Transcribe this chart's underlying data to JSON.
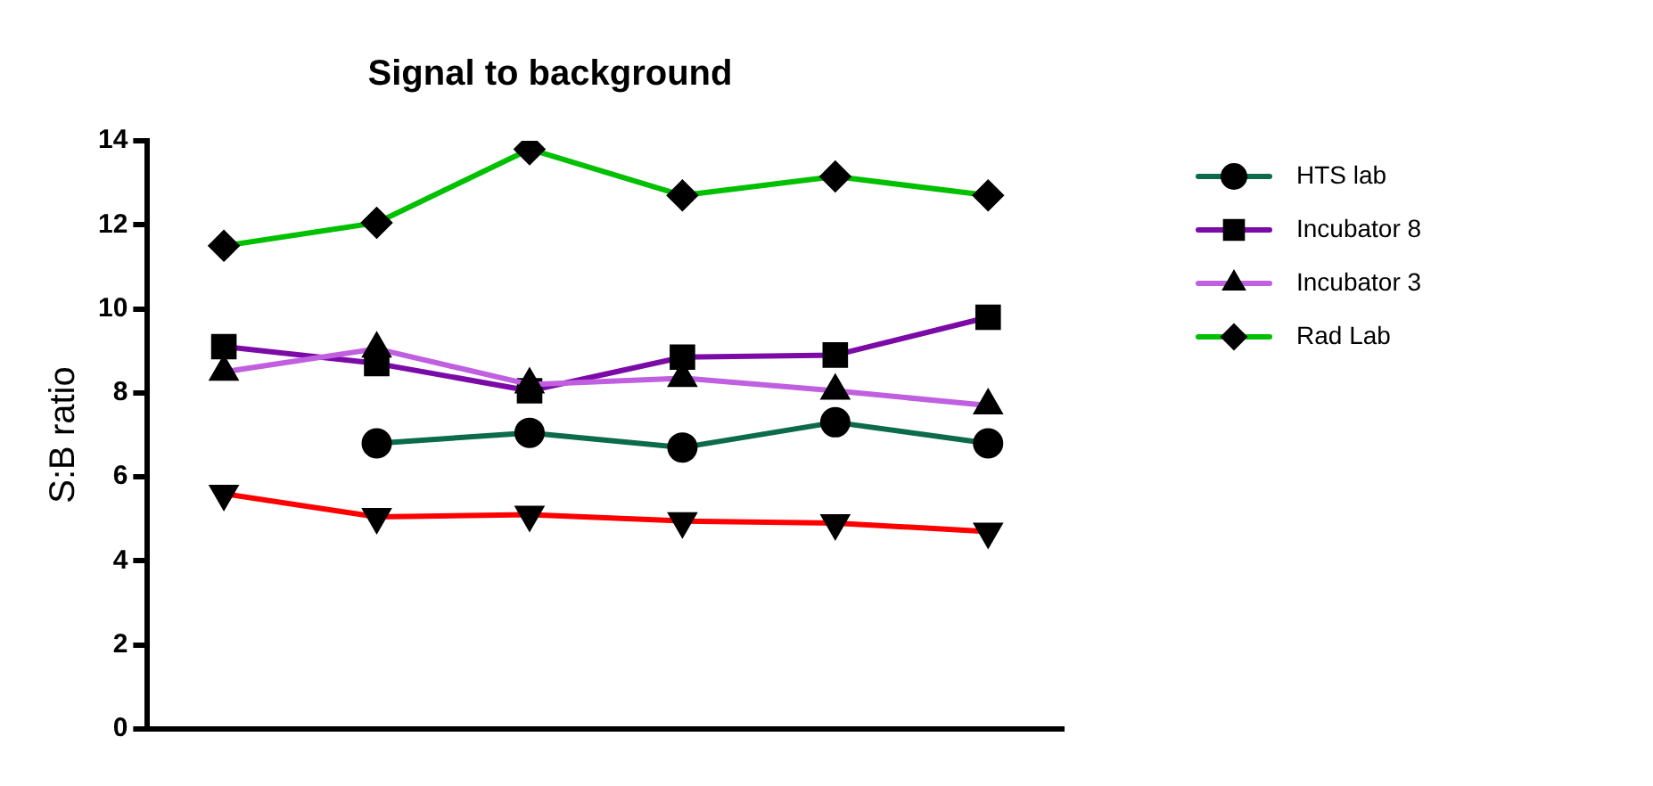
{
  "chart_data": {
    "type": "line",
    "title": "Signal to background",
    "ylabel": "S:B ratio",
    "categories": [
      null,
      null,
      null,
      null,
      null,
      null
    ],
    "series": [
      {
        "name": "HTS lab",
        "color": "#0b6b4b",
        "marker": "circle",
        "values": [
          null,
          6.8,
          7.05,
          6.7,
          7.3,
          6.8
        ]
      },
      {
        "name": "Incubator 8",
        "color": "#7b0aa6",
        "marker": "square",
        "values": [
          9.1,
          8.7,
          8.05,
          8.85,
          8.9,
          9.8
        ]
      },
      {
        "name": "Incubator 3",
        "color": "#c060e0",
        "marker": "triangle",
        "values": [
          8.5,
          9.05,
          8.2,
          8.35,
          8.05,
          7.7
        ]
      },
      {
        "color": "#ff0000",
        "marker": "triangle-down",
        "values": [
          5.6,
          5.05,
          5.1,
          4.95,
          4.9,
          4.7
        ]
      },
      {
        "name": "Rad Lab",
        "color": "#00c000",
        "marker": "diamond",
        "values": [
          11.5,
          12.05,
          13.8,
          12.7,
          13.15,
          12.7
        ]
      }
    ],
    "ylim": [
      0,
      14
    ],
    "yticks": [
      0,
      2,
      4,
      6,
      8,
      10,
      12,
      14
    ],
    "grid": false,
    "legend": "right",
    "tick_labels": "y"
  }
}
